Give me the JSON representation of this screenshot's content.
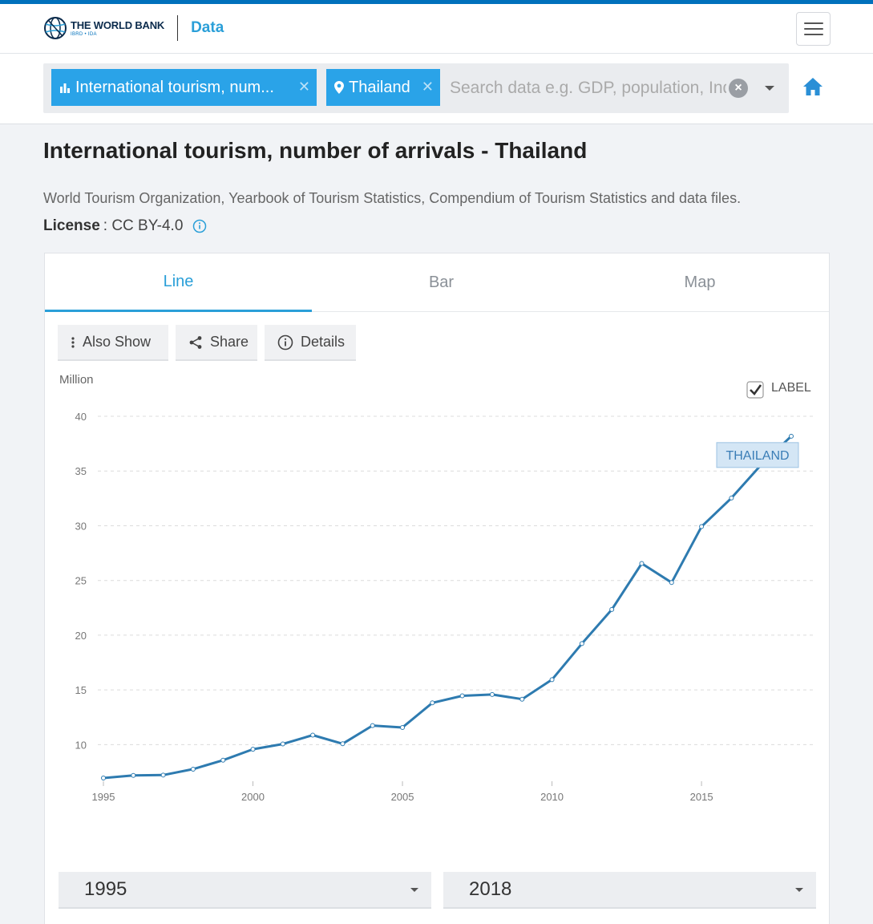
{
  "header": {
    "logo_main": "THE WORLD BANK",
    "logo_sub": "IBRD • IDA",
    "section": "Data",
    "menu_icon": "hamburger-menu-icon"
  },
  "search": {
    "chips": [
      {
        "label": "International tourism, num...",
        "icon": "bar-chart-icon"
      },
      {
        "label": "Thailand",
        "icon": "location-pin-icon"
      }
    ],
    "placeholder": "Search data e.g. GDP, population, Indonesia",
    "home_icon": "home-icon",
    "accent": "#2aa3e8"
  },
  "page": {
    "title": "International tourism, number of arrivals - Thailand",
    "source": "World Tourism Organization, Yearbook of Tourism Statistics, Compendium of Tourism Statistics and data files.",
    "license_label": "License",
    "license_sep": ":",
    "license_value": "CC BY-4.0"
  },
  "tabs": [
    {
      "label": "Line",
      "active": true
    },
    {
      "label": "Bar",
      "active": false
    },
    {
      "label": "Map",
      "active": false
    }
  ],
  "tools": {
    "also_show": "Also Show",
    "share": "Share",
    "details": "Details"
  },
  "chart_data": {
    "type": "line",
    "ylabel": "Million",
    "label_toggle": "LABEL",
    "label_checked": true,
    "x": [
      1995,
      1996,
      1997,
      1998,
      1999,
      2000,
      2001,
      2002,
      2003,
      2004,
      2005,
      2006,
      2007,
      2008,
      2009,
      2010,
      2011,
      2012,
      2013,
      2014,
      2015,
      2016,
      2017,
      2018
    ],
    "series": [
      {
        "name": "THAILAND",
        "color": "#2e7bb0",
        "values": [
          6.95,
          7.19,
          7.22,
          7.76,
          8.58,
          9.58,
          10.06,
          10.87,
          10.08,
          11.74,
          11.57,
          13.82,
          14.46,
          14.58,
          14.15,
          15.94,
          19.23,
          22.35,
          26.55,
          24.81,
          29.92,
          32.53,
          35.59,
          38.18
        ]
      }
    ],
    "xticks": [
      1995,
      2000,
      2005,
      2010,
      2015
    ],
    "yticks": [
      10,
      15,
      20,
      25,
      30,
      35,
      40
    ],
    "xlim": [
      1995,
      2018
    ],
    "ylim": [
      6.95,
      40
    ],
    "grid": true
  },
  "range": {
    "from": "1995",
    "to": "2018"
  }
}
